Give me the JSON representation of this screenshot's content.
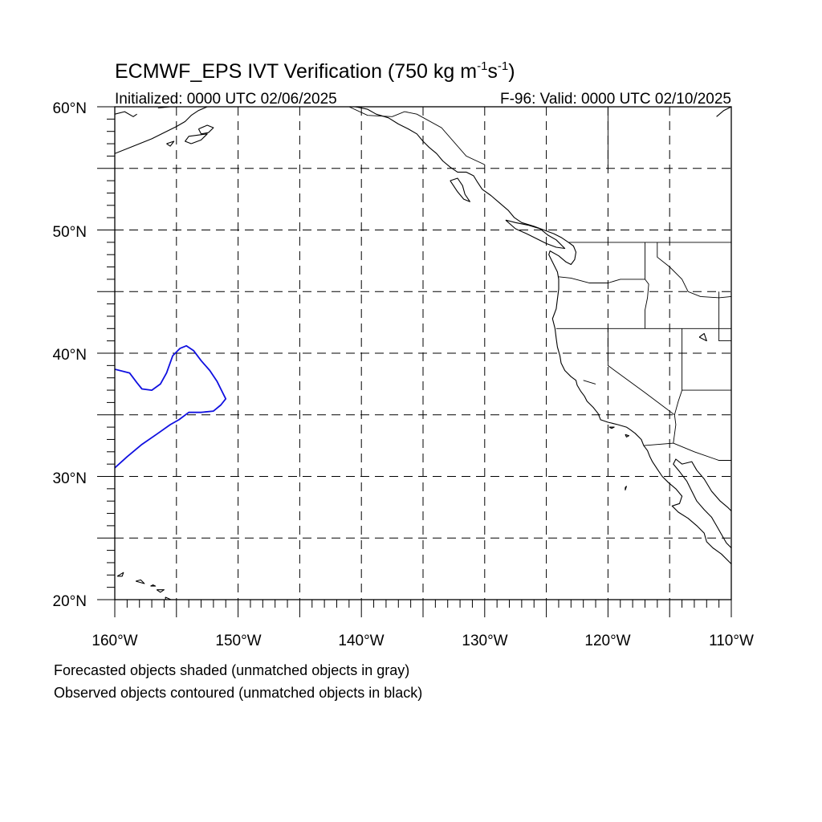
{
  "title": {
    "main": "ECMWF_EPS IVT Verification (750 kg m",
    "sup1": "-1",
    "mid": "s",
    "sup2": "-1",
    "end": ")"
  },
  "subtitle_left": "Initialized: 0000 UTC 02/06/2025",
  "subtitle_right": "F-96: Valid: 0000 UTC 02/10/2025",
  "lon_labels": [
    "160°W",
    "150°W",
    "140°W",
    "130°W",
    "120°W",
    "110°W"
  ],
  "lat_labels": [
    "60°N",
    "50°N",
    "40°N",
    "30°N",
    "20°N"
  ],
  "footnotes": [
    "Forecasted objects shaded (unmatched objects in gray)",
    "Observed objects contoured (unmatched objects in black)"
  ],
  "map": {
    "lon_range": [
      -160,
      -110
    ],
    "lat_range": [
      20,
      60
    ],
    "grid_lon_step": 5,
    "grid_lat_step": 5,
    "grid_style": "dashed",
    "colors": {
      "coastline": "#000000",
      "observed_matched_contour": "#1010e0",
      "grid": "#000000"
    }
  },
  "observed_objects": [
    {
      "name": "observed object (matched)",
      "color": "#1010e0",
      "points": [
        [
          -160.0,
          38.7
        ],
        [
          -158.8,
          38.4
        ],
        [
          -158.2,
          37.6
        ],
        [
          -157.8,
          37.1
        ],
        [
          -157.0,
          37.0
        ],
        [
          -156.3,
          37.5
        ],
        [
          -155.8,
          38.4
        ],
        [
          -155.3,
          39.8
        ],
        [
          -154.7,
          40.4
        ],
        [
          -154.2,
          40.6
        ],
        [
          -153.6,
          40.2
        ],
        [
          -153.0,
          39.4
        ],
        [
          -152.3,
          38.6
        ],
        [
          -151.7,
          37.7
        ],
        [
          -151.3,
          36.9
        ],
        [
          -151.0,
          36.3
        ],
        [
          -151.4,
          35.8
        ],
        [
          -152.0,
          35.3
        ],
        [
          -153.0,
          35.2
        ],
        [
          -154.0,
          35.2
        ],
        [
          -154.8,
          34.6
        ],
        [
          -155.5,
          34.2
        ],
        [
          -156.5,
          33.5
        ],
        [
          -157.8,
          32.6
        ],
        [
          -159.0,
          31.6
        ],
        [
          -160.0,
          30.7
        ]
      ]
    }
  ],
  "coastlines": [
    [
      [
        -160,
        56.2
      ],
      [
        -158.5,
        56.8
      ],
      [
        -157,
        57.4
      ],
      [
        -156,
        57.9
      ],
      [
        -155,
        58.4
      ],
      [
        -154.3,
        58.8
      ],
      [
        -153.8,
        59.3
      ],
      [
        -153.2,
        59.7
      ],
      [
        -152.5,
        60.0
      ]
    ],
    [
      [
        -160,
        59.4
      ],
      [
        -159.2,
        59.6
      ],
      [
        -158.5,
        59.2
      ],
      [
        -158.2,
        59.4
      ]
    ],
    [
      [
        -156.5,
        59.9
      ],
      [
        -155.5,
        60.0
      ]
    ],
    [
      [
        -153.2,
        58.2
      ],
      [
        -152.5,
        58.5
      ],
      [
        -152.0,
        58.3
      ],
      [
        -152.4,
        57.9
      ],
      [
        -153.0,
        57.8
      ],
      [
        -153.2,
        58.2
      ]
    ],
    [
      [
        -153.8,
        57.0
      ],
      [
        -153.0,
        57.3
      ],
      [
        -152.5,
        57.8
      ],
      [
        -154.0,
        57.6
      ],
      [
        -154.3,
        57.2
      ],
      [
        -153.8,
        57.0
      ]
    ],
    [
      [
        -155.8,
        57.0
      ],
      [
        -155.2,
        57.2
      ],
      [
        -155.5,
        56.8
      ],
      [
        -155.8,
        57.0
      ]
    ],
    [
      [
        -140.5,
        60.0
      ],
      [
        -139.5,
        59.8
      ],
      [
        -138.8,
        59.4
      ],
      [
        -137.8,
        59.1
      ],
      [
        -137.0,
        58.6
      ],
      [
        -136.2,
        58.2
      ],
      [
        -135.5,
        57.8
      ],
      [
        -135.0,
        57.2
      ],
      [
        -134.5,
        56.7
      ],
      [
        -133.9,
        56.2
      ],
      [
        -133.4,
        55.6
      ],
      [
        -132.8,
        55.1
      ],
      [
        -132.2,
        54.7
      ],
      [
        -131.5,
        54.7
      ],
      [
        -130.9,
        54.4
      ],
      [
        -130.6,
        53.9
      ],
      [
        -130.2,
        53.3
      ],
      [
        -129.5,
        52.8
      ],
      [
        -128.8,
        52.2
      ],
      [
        -128.1,
        51.6
      ],
      [
        -127.6,
        51.0
      ],
      [
        -127.0,
        50.6
      ],
      [
        -126.0,
        50.3
      ],
      [
        -125.2,
        50.0
      ],
      [
        -124.4,
        49.7
      ],
      [
        -123.8,
        49.4
      ],
      [
        -123.2,
        49.0
      ],
      [
        -122.8,
        48.7
      ],
      [
        -122.6,
        48.2
      ],
      [
        -122.7,
        47.6
      ],
      [
        -123.0,
        47.2
      ],
      [
        -123.4,
        47.4
      ],
      [
        -124.0,
        47.9
      ],
      [
        -124.7,
        48.3
      ],
      [
        -124.8,
        48.0
      ],
      [
        -124.4,
        47.2
      ],
      [
        -124.1,
        46.6
      ],
      [
        -124.0,
        46.0
      ],
      [
        -124.0,
        45.2
      ],
      [
        -124.1,
        44.4
      ],
      [
        -124.2,
        43.6
      ],
      [
        -124.5,
        42.8
      ],
      [
        -124.3,
        42.0
      ],
      [
        -124.2,
        41.2
      ],
      [
        -124.1,
        40.5
      ],
      [
        -123.9,
        39.8
      ],
      [
        -123.8,
        39.2
      ],
      [
        -123.5,
        38.6
      ],
      [
        -123.0,
        38.1
      ],
      [
        -122.6,
        37.8
      ],
      [
        -122.5,
        37.4
      ],
      [
        -122.2,
        36.9
      ],
      [
        -121.9,
        36.5
      ],
      [
        -121.7,
        36.1
      ],
      [
        -121.2,
        35.6
      ],
      [
        -120.8,
        35.1
      ],
      [
        -120.6,
        34.6
      ],
      [
        -120.0,
        34.4
      ],
      [
        -119.2,
        34.2
      ],
      [
        -118.5,
        34.0
      ],
      [
        -118.2,
        33.8
      ],
      [
        -117.8,
        33.5
      ],
      [
        -117.3,
        33.0
      ],
      [
        -117.1,
        32.5
      ],
      [
        -116.8,
        32.1
      ],
      [
        -116.6,
        31.6
      ],
      [
        -116.4,
        31.2
      ],
      [
        -116.0,
        30.6
      ],
      [
        -115.6,
        30.0
      ],
      [
        -115.1,
        29.5
      ],
      [
        -114.5,
        29.0
      ],
      [
        -114.0,
        28.4
      ],
      [
        -114.2,
        27.8
      ],
      [
        -114.8,
        27.6
      ],
      [
        -114.3,
        27.1
      ],
      [
        -113.5,
        26.6
      ],
      [
        -112.8,
        26.0
      ],
      [
        -112.2,
        25.4
      ],
      [
        -112.0,
        24.7
      ],
      [
        -111.5,
        24.2
      ],
      [
        -110.8,
        23.7
      ],
      [
        -110.3,
        23.2
      ],
      [
        -110,
        22.9
      ]
    ],
    [
      [
        -110,
        24.2
      ],
      [
        -110.4,
        24.6
      ],
      [
        -110.8,
        25.3
      ],
      [
        -111.2,
        26.0
      ],
      [
        -111.6,
        26.7
      ],
      [
        -112.2,
        27.3
      ],
      [
        -112.8,
        28.0
      ],
      [
        -113.2,
        28.8
      ],
      [
        -113.6,
        29.6
      ],
      [
        -114.2,
        30.4
      ],
      [
        -114.7,
        31.0
      ],
      [
        -114.5,
        31.4
      ],
      [
        -114.0,
        31.0
      ],
      [
        -113.2,
        31.2
      ],
      [
        -112.8,
        30.5
      ],
      [
        -112.2,
        29.8
      ],
      [
        -111.6,
        28.8
      ],
      [
        -110.9,
        28.0
      ],
      [
        -110.3,
        27.5
      ],
      [
        -110,
        27.2
      ]
    ],
    [
      [
        -111.2,
        59.2
      ],
      [
        -110.6,
        59.7
      ],
      [
        -110,
        60.0
      ]
    ],
    [
      [
        -132.8,
        54.0
      ],
      [
        -132.2,
        54.2
      ],
      [
        -131.8,
        53.6
      ],
      [
        -131.6,
        52.9
      ],
      [
        -131.2,
        52.3
      ],
      [
        -131.7,
        52.5
      ],
      [
        -132.2,
        53.1
      ],
      [
        -132.8,
        54.0
      ]
    ],
    [
      [
        -128.3,
        50.8
      ],
      [
        -127.5,
        50.6
      ],
      [
        -126.5,
        50.4
      ],
      [
        -125.5,
        50.1
      ],
      [
        -124.9,
        49.6
      ],
      [
        -124.2,
        49.2
      ],
      [
        -123.5,
        48.5
      ],
      [
        -124.2,
        48.6
      ],
      [
        -125.0,
        48.9
      ],
      [
        -125.8,
        49.3
      ],
      [
        -126.6,
        49.7
      ],
      [
        -127.5,
        50.1
      ],
      [
        -128.3,
        50.8
      ]
    ],
    [
      [
        -119.9,
        34.0
      ],
      [
        -119.5,
        34.0
      ],
      [
        -119.7,
        33.9
      ],
      [
        -119.9,
        34.0
      ]
    ],
    [
      [
        -118.6,
        33.4
      ],
      [
        -118.3,
        33.3
      ],
      [
        -118.5,
        33.2
      ],
      [
        -118.6,
        33.4
      ]
    ],
    [
      [
        -118.6,
        29.1
      ],
      [
        -118.5,
        29.2
      ],
      [
        -118.6,
        28.9
      ],
      [
        -118.6,
        29.1
      ]
    ],
    [
      [
        -159.8,
        21.9
      ],
      [
        -159.3,
        22.2
      ],
      [
        -159.4,
        21.9
      ],
      [
        -159.8,
        21.9
      ]
    ],
    [
      [
        -158.3,
        21.5
      ],
      [
        -157.6,
        21.3
      ],
      [
        -157.9,
        21.6
      ],
      [
        -158.3,
        21.5
      ]
    ],
    [
      [
        -157.1,
        21.1
      ],
      [
        -156.7,
        21.1
      ],
      [
        -156.9,
        21.2
      ],
      [
        -157.1,
        21.1
      ]
    ],
    [
      [
        -156.6,
        20.8
      ],
      [
        -156.0,
        20.8
      ],
      [
        -156.3,
        20.6
      ],
      [
        -156.6,
        20.8
      ]
    ],
    [
      [
        -155.9,
        20.2
      ],
      [
        -155.0,
        19.8
      ],
      [
        -155.8,
        19.5
      ],
      [
        -155.9,
        20.2
      ]
    ],
    [
      [
        -112.6,
        41.3
      ],
      [
        -112.2,
        41.6
      ],
      [
        -112.0,
        41.0
      ],
      [
        -112.6,
        41.3
      ]
    ]
  ],
  "borders": [
    [
      [
        -123.2,
        49.0
      ],
      [
        -110,
        49.0
      ]
    ],
    [
      [
        -141,
        60
      ],
      [
        -139.5,
        59.3
      ],
      [
        -137.5,
        59.2
      ],
      [
        -136.5,
        59.6
      ],
      [
        -135.5,
        59.4
      ],
      [
        -133.5,
        58.3
      ],
      [
        -131.5,
        56.0
      ],
      [
        -130.0,
        55.3
      ]
    ],
    [
      [
        -124.2,
        42.0
      ],
      [
        -110,
        42.0
      ]
    ],
    [
      [
        -117.0,
        49.0
      ],
      [
        -117.0,
        46.0
      ],
      [
        -116.7,
        45.6
      ],
      [
        -116.8,
        44.5
      ],
      [
        -117.0,
        43.5
      ],
      [
        -117.0,
        42.0
      ]
    ],
    [
      [
        -124.0,
        46.2
      ],
      [
        -123.0,
        46.1
      ],
      [
        -121.5,
        45.7
      ],
      [
        -120.0,
        45.7
      ],
      [
        -119.0,
        46.0
      ],
      [
        -117.0,
        46.0
      ]
    ],
    [
      [
        -116.0,
        49.0
      ],
      [
        -116.0,
        47.8
      ],
      [
        -115.0,
        47.0
      ],
      [
        -114.0,
        46.0
      ],
      [
        -113.5,
        45.0
      ],
      [
        -112.5,
        44.6
      ],
      [
        -111.0,
        44.5
      ],
      [
        -110,
        44.6
      ]
    ],
    [
      [
        -120.0,
        42.0
      ],
      [
        -120.0,
        39.0
      ],
      [
        -117.0,
        36.8
      ],
      [
        -114.6,
        35.0
      ]
    ],
    [
      [
        -114.0,
        42.0
      ],
      [
        -114.0,
        37.0
      ],
      [
        -110,
        37.0
      ]
    ],
    [
      [
        -114.0,
        37.0
      ],
      [
        -114.3,
        36.1
      ],
      [
        -114.6,
        35.0
      ],
      [
        -114.5,
        34.2
      ],
      [
        -114.7,
        32.7
      ],
      [
        -117.1,
        32.5
      ]
    ],
    [
      [
        -114.7,
        32.7
      ],
      [
        -113.0,
        32.0
      ],
      [
        -111.0,
        31.3
      ],
      [
        -110,
        31.3
      ]
    ],
    [
      [
        -111.0,
        45.0
      ],
      [
        -111.0,
        41.0
      ],
      [
        -110,
        41.0
      ]
    ],
    [
      [
        -120.0,
        55.0
      ],
      [
        -120.0,
        60.0
      ]
    ],
    [
      [
        -122.0,
        37.8
      ],
      [
        -121.0,
        37.5
      ]
    ]
  ]
}
